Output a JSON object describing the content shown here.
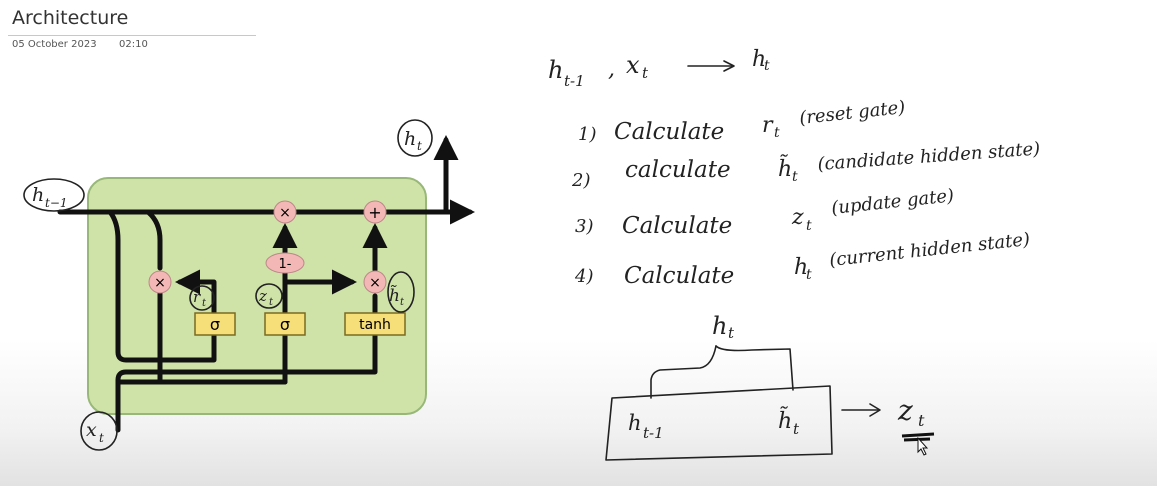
{
  "page": {
    "title": "Architecture",
    "date": "05 October 2023",
    "time": "02:10"
  },
  "colors": {
    "cell_fill": "#cfe3a9",
    "cell_border": "#98b879",
    "op_fill": "#f3b8b6",
    "gate_fill": "#f6df78",
    "ink": "#222222"
  },
  "diagram": {
    "h_prev": "h",
    "h_prev_sub": "t−1",
    "h_out": "h",
    "h_out_sub": "t",
    "x_in": "x",
    "x_in_sub": "t",
    "r_label": "r",
    "r_sub": "t",
    "z_label": "z",
    "z_sub": "t",
    "htilde_label": "h̃",
    "htilde_sub": "t",
    "one_minus": "1-",
    "sigma_1": "σ",
    "sigma_2": "σ",
    "tanh": "tanh",
    "op_multiply": "×",
    "op_add": "+"
  },
  "notes": {
    "header_left": "h",
    "header_left_sub": "t-1",
    "header_comma": ",",
    "header_x": "x",
    "header_x_sub": "t",
    "header_right": "h",
    "header_right_sub": "t",
    "steps": [
      {
        "num": "1)",
        "verb": "Calculate",
        "sym": "r",
        "sub": "t",
        "desc": "(reset gate)"
      },
      {
        "num": "2)",
        "verb": "calculate",
        "sym": "h̃",
        "sub": "t",
        "desc": "(candidate hidden state)"
      },
      {
        "num": "3)",
        "verb": "Calculate",
        "sym": "z",
        "sub": "t",
        "desc": "(update gate)"
      },
      {
        "num": "4)",
        "verb": "Calculate",
        "sym": "h",
        "sub": "t",
        "desc": "(current hidden state)"
      }
    ],
    "box_top": "h",
    "box_top_sub": "t",
    "box_left": "h",
    "box_left_sub": "t-1",
    "box_right": "h̃",
    "box_right_sub": "t",
    "box_out": "z",
    "box_out_sub": "t"
  }
}
